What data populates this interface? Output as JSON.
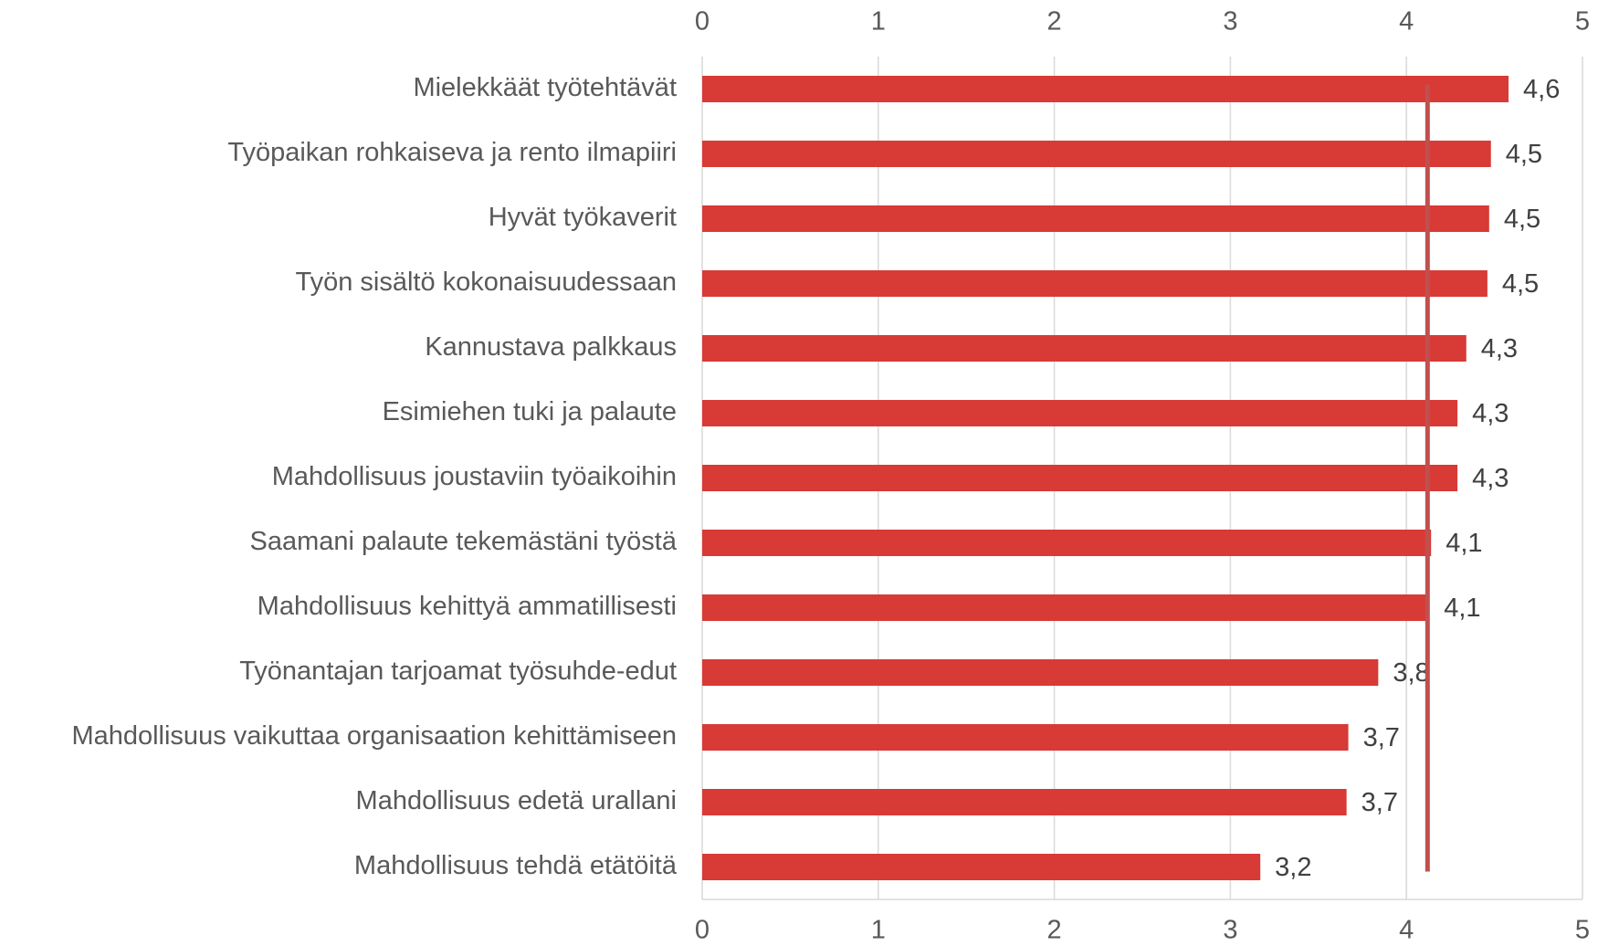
{
  "chart_data": {
    "type": "hbar",
    "categories": [
      "Mielekkäät työtehtävät",
      "Työpaikan rohkaiseva ja rento ilmapiiri",
      "Hyvät työkaverit",
      "Työn sisältö kokonaisuudessaan",
      "Kannustava palkkaus",
      "Esimiehen tuki ja palaute",
      "Mahdollisuus joustaviin työaikoihin",
      "Saamani palaute tekemästäni työstä",
      "Mahdollisuus kehittyä ammatillisesti",
      "Työnantajan tarjoamat työsuhde-edut",
      "Mahdollisuus vaikuttaa organisaation kehittämiseen",
      "Mahdollisuus edetä urallani",
      "Mahdollisuus tehdä etätöitä"
    ],
    "values": [
      4.58,
      4.48,
      4.47,
      4.46,
      4.34,
      4.29,
      4.29,
      4.14,
      4.13,
      3.84,
      3.67,
      3.66,
      3.17
    ],
    "value_labels": [
      "4,6",
      "4,5",
      "4,5",
      "4,5",
      "4,3",
      "4,3",
      "4,3",
      "4,1",
      "4,1",
      "3,8",
      "3,7",
      "3,7",
      "3,2"
    ],
    "color": "#d83a36",
    "reference_line": {
      "value": 4.12,
      "color": "#c0504d"
    },
    "xlim": [
      0,
      5
    ],
    "xticks": [
      0,
      1,
      2,
      3,
      4,
      5
    ],
    "grid": true
  }
}
